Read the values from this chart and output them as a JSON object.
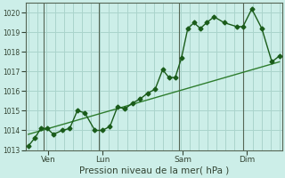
{
  "title": "",
  "xlabel": "Pression niveau de la mer( hPa )",
  "ylabel": "",
  "bg_color": "#cceee8",
  "grid_color": "#aad4cc",
  "line_color": "#1a5c1a",
  "trend_color": "#2e7d2e",
  "marker": "D",
  "marker_size": 2.5,
  "ylim": [
    1013,
    1020.5
  ],
  "yticks": [
    1013,
    1014,
    1015,
    1016,
    1017,
    1018,
    1019,
    1020
  ],
  "day_positions": [
    0.08,
    0.295,
    0.615,
    0.87
  ],
  "day_labels": [
    "Ven",
    "Lun",
    "Sam",
    "Dim"
  ],
  "vline_x": [
    0.06,
    0.28,
    0.6,
    0.855
  ],
  "data_x": [
    0.0,
    0.025,
    0.05,
    0.075,
    0.1,
    0.135,
    0.165,
    0.195,
    0.225,
    0.265,
    0.295,
    0.325,
    0.355,
    0.385,
    0.415,
    0.445,
    0.475,
    0.505,
    0.535,
    0.56,
    0.585,
    0.61,
    0.635,
    0.66,
    0.685,
    0.71,
    0.74,
    0.78,
    0.83,
    0.855,
    0.89,
    0.93,
    0.97,
    1.0
  ],
  "data_y": [
    1013.2,
    1013.6,
    1014.1,
    1014.1,
    1013.8,
    1014.0,
    1014.1,
    1015.0,
    1014.9,
    1014.0,
    1014.0,
    1014.2,
    1015.2,
    1015.1,
    1015.4,
    1015.6,
    1015.9,
    1016.1,
    1017.1,
    1016.7,
    1016.7,
    1017.7,
    1019.2,
    1019.5,
    1019.2,
    1019.5,
    1019.8,
    1019.5,
    1019.3,
    1019.3,
    1020.2,
    1019.2,
    1017.5,
    1017.8
  ],
  "trend_x": [
    0.0,
    1.0
  ],
  "trend_y": [
    1013.8,
    1017.5
  ],
  "xlim": [
    -0.01,
    1.01
  ],
  "spine_color": "#556655",
  "tick_color": "#334433"
}
